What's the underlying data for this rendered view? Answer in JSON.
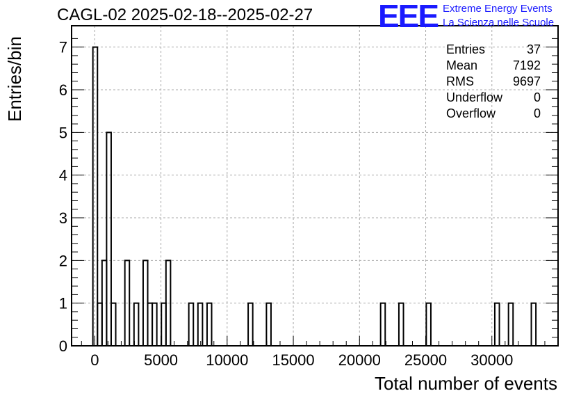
{
  "header": {
    "title": "CAGL-02 2025-02-18--2025-02-27",
    "logo_text": "EEE",
    "logo_line1": "Extreme Energy Events",
    "logo_line2": "La Scienza nelle Scuole"
  },
  "stats": [
    {
      "label": "Entries",
      "value": "37"
    },
    {
      "label": "Mean",
      "value": "7192"
    },
    {
      "label": "RMS",
      "value": "9697"
    },
    {
      "label": "Underflow",
      "value": "0"
    },
    {
      "label": "Overflow",
      "value": "0"
    }
  ],
  "colors": {
    "logo": "#1a1aff",
    "grid": "#aaaaaa",
    "line": "#000000"
  },
  "chart_data": {
    "type": "bar",
    "histogram": true,
    "xlabel": "Total number of events",
    "ylabel": "Entries/bin",
    "xlim": [
      -1750,
      35000
    ],
    "ylim": [
      0,
      7.5
    ],
    "bin_width": 345,
    "grid": true,
    "legend_placement": "top-right",
    "x_ticks": [
      0,
      5000,
      10000,
      15000,
      20000,
      25000,
      30000
    ],
    "y_ticks": [
      0,
      1,
      2,
      3,
      4,
      5,
      6,
      7
    ],
    "bins": [
      {
        "start": -140,
        "value": 7
      },
      {
        "start": 205,
        "value": 1
      },
      {
        "start": 550,
        "value": 2
      },
      {
        "start": 895,
        "value": 5
      },
      {
        "start": 1240,
        "value": 1
      },
      {
        "start": 2275,
        "value": 2
      },
      {
        "start": 2965,
        "value": 1
      },
      {
        "start": 3655,
        "value": 2
      },
      {
        "start": 4000,
        "value": 1
      },
      {
        "start": 4345,
        "value": 1
      },
      {
        "start": 5035,
        "value": 1
      },
      {
        "start": 5380,
        "value": 2
      },
      {
        "start": 7105,
        "value": 1
      },
      {
        "start": 7795,
        "value": 1
      },
      {
        "start": 8485,
        "value": 1
      },
      {
        "start": 11590,
        "value": 1
      },
      {
        "start": 12970,
        "value": 1
      },
      {
        "start": 21595,
        "value": 1
      },
      {
        "start": 22975,
        "value": 1
      },
      {
        "start": 25045,
        "value": 1
      },
      {
        "start": 30220,
        "value": 1
      },
      {
        "start": 31255,
        "value": 1
      },
      {
        "start": 32980,
        "value": 1
      }
    ]
  }
}
